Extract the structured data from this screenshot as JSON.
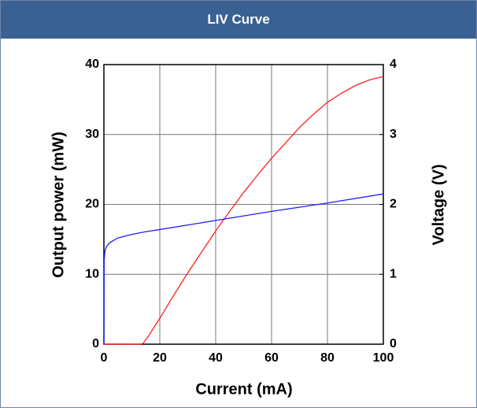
{
  "chart_data": {
    "type": "line",
    "title": "LIV Curve",
    "x_label": "Current (mA)",
    "y_label": "Output power (mW)",
    "y2_label": "Voltage (V)",
    "xlim": [
      0,
      100
    ],
    "xticks": [
      0,
      20,
      40,
      60,
      80,
      100
    ],
    "ylim": [
      0,
      40
    ],
    "yticks": [
      0,
      10,
      20,
      30,
      40
    ],
    "y2lim": [
      0,
      4
    ],
    "y2ticks": [
      0,
      1,
      2,
      3,
      4
    ],
    "grid": true,
    "series": [
      {
        "color": "#ff2020",
        "axis": "y",
        "x": [
          0,
          5,
          10,
          13,
          14,
          16,
          20,
          25,
          30,
          35,
          40,
          45,
          50,
          55,
          60,
          65,
          70,
          75,
          80,
          85,
          90,
          95,
          100
        ],
        "values": [
          0,
          0,
          0,
          0,
          0.1,
          1.2,
          3.7,
          7,
          10.2,
          13.2,
          16.2,
          19,
          21.7,
          24.2,
          26.6,
          28.8,
          31,
          32.9,
          34.6,
          35.9,
          37,
          37.8,
          38.3
        ]
      },
      {
        "color": "#2020ff",
        "axis": "y2",
        "x": [
          0,
          0.1,
          0.3,
          0.5,
          1,
          2,
          5,
          10,
          15,
          20,
          40,
          60,
          80,
          100
        ],
        "values": [
          0,
          1.2,
          1.3,
          1.35,
          1.4,
          1.45,
          1.52,
          1.57,
          1.61,
          1.64,
          1.77,
          1.9,
          2.02,
          2.15
        ]
      }
    ]
  }
}
